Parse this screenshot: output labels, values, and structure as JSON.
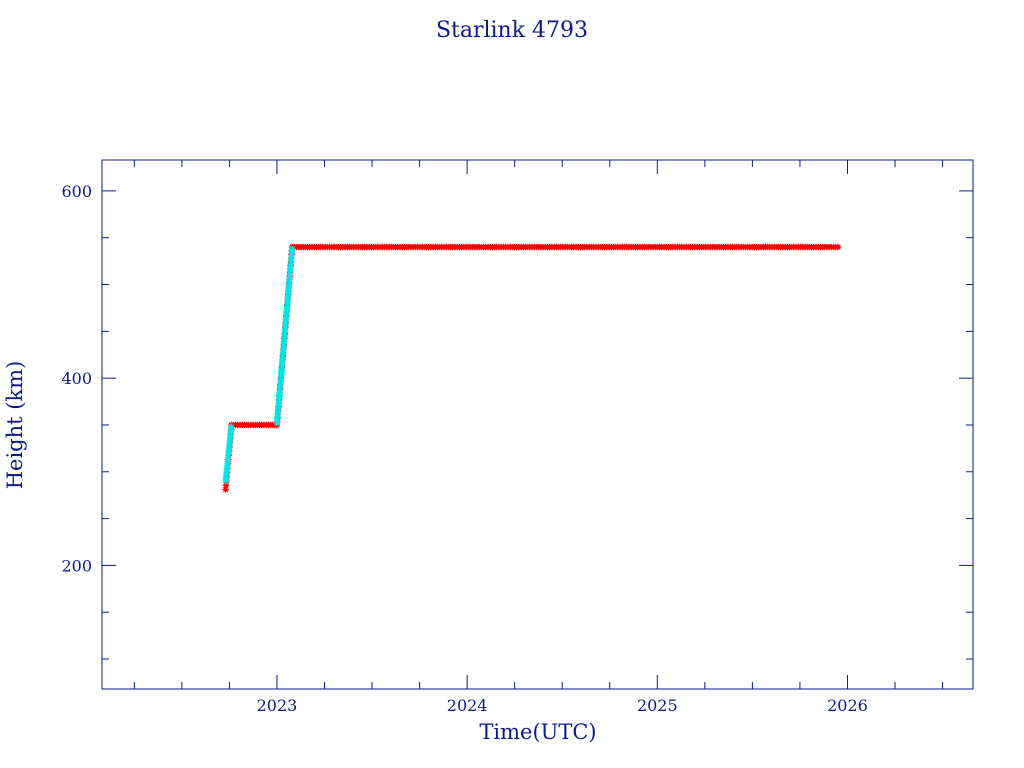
{
  "chart_data": {
    "type": "scatter",
    "title": "Starlink 4793",
    "xlabel": "Time(UTC)",
    "ylabel": "Height (km)",
    "xlim": [
      2022.08,
      2026.66
    ],
    "ylim": [
      68,
      633
    ],
    "x_ticks": [
      2023,
      2024,
      2025,
      2026
    ],
    "x_tick_labels": [
      "2023",
      "2024",
      "2025",
      "2026"
    ],
    "y_ticks": [
      200,
      400,
      600
    ],
    "y_tick_labels": [
      "200",
      "400",
      "600"
    ],
    "grid": false,
    "legend": "none",
    "colors": {
      "axis": "#0b1a8a",
      "primary": "#ff0000",
      "secondary": "#00e5e5"
    },
    "series": [
      {
        "color": "#ff0000",
        "marker": "star",
        "segments": [
          {
            "x_start": 2022.73,
            "x_end": 2022.76,
            "y_start": 281,
            "y_end": 345,
            "density": 0.5
          },
          {
            "x_start": 2022.76,
            "x_end": 2023.0,
            "y_start": 350,
            "y_end": 350,
            "density": 1
          },
          {
            "x_start": 2023.0,
            "x_end": 2023.08,
            "y_start": 350,
            "y_end": 540,
            "density": 0.6
          },
          {
            "x_start": 2023.08,
            "x_end": 2025.95,
            "y_start": 540,
            "y_end": 540,
            "density": 1
          }
        ]
      },
      {
        "color": "#00e5e5",
        "marker": "star",
        "segments": [
          {
            "x_start": 2022.73,
            "x_end": 2022.76,
            "y_start": 290,
            "y_end": 348,
            "density": 1
          },
          {
            "x_start": 2023.0,
            "x_end": 2023.08,
            "y_start": 352,
            "y_end": 538,
            "density": 1
          }
        ]
      }
    ]
  }
}
